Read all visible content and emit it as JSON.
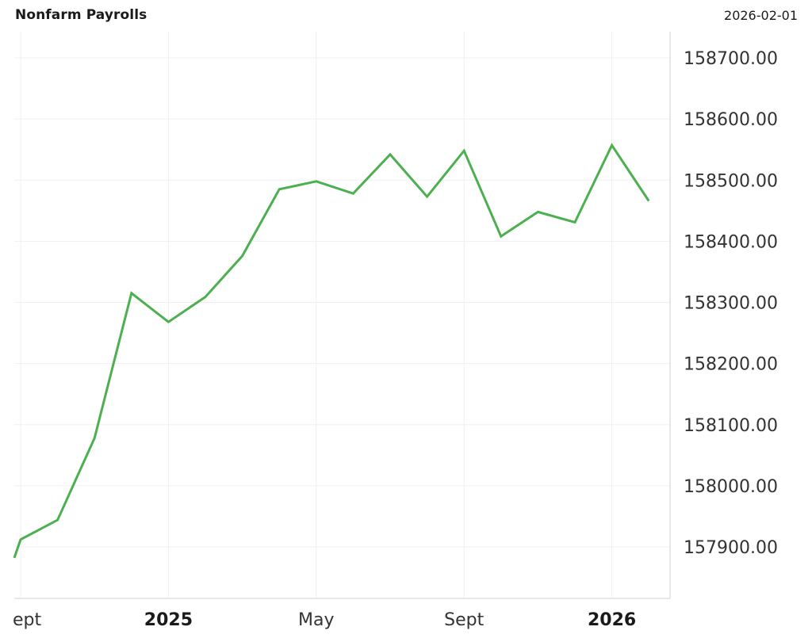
{
  "header": {
    "title": "Nonfarm Payrolls",
    "date": "2026-02-01"
  },
  "colors": {
    "line": "#4caf50",
    "grid": "#f0f0f0",
    "axis": "#e0e0e0",
    "text": "#333333"
  },
  "chart_data": {
    "type": "line",
    "title": "Nonfarm Payrolls",
    "xlabel": "",
    "ylabel": "",
    "grid": true,
    "legend": "none",
    "ylim": [
      157820,
      158745
    ],
    "y_ticks": [
      "158700.00",
      "158600.00",
      "158500.00",
      "158400.00",
      "158300.00",
      "158200.00",
      "158100.00",
      "158000.00",
      "157900.00"
    ],
    "x_ticks": [
      {
        "label": "Sept",
        "bold": false,
        "shown": "ept"
      },
      {
        "label": "2025",
        "bold": true
      },
      {
        "label": "May",
        "bold": false
      },
      {
        "label": "Sept",
        "bold": false
      },
      {
        "label": "2026",
        "bold": true
      }
    ],
    "series": [
      {
        "name": "Nonfarm Payrolls",
        "x": [
          "2024-08",
          "2024-09",
          "2024-10",
          "2024-11",
          "2024-12",
          "2025-01",
          "2025-02",
          "2025-03",
          "2025-04",
          "2025-05",
          "2025-06",
          "2025-07",
          "2025-08",
          "2025-09",
          "2025-10",
          "2025-11",
          "2025-12",
          "2026-01",
          "2026-02"
        ],
        "values": [
          157882,
          157912,
          157944,
          158078,
          158315,
          158268,
          158309,
          158376,
          158485,
          158498,
          158478,
          158542,
          158473,
          158548,
          158408,
          158448,
          158431,
          158557,
          158466
        ]
      }
    ]
  }
}
